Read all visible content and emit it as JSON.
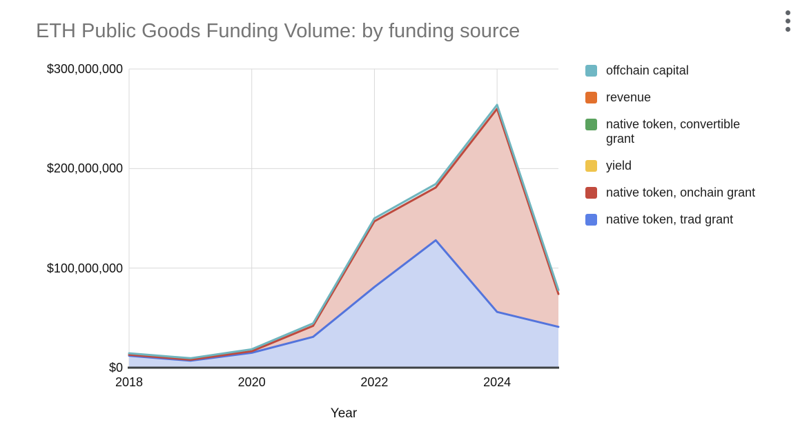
{
  "header": {
    "title": "ETH Public Goods Funding Volume: by funding source"
  },
  "menu": {
    "icon": "kebab-menu-icon"
  },
  "chart_data": {
    "type": "area",
    "stacked": true,
    "title": "ETH Public Goods Funding Volume: by funding source",
    "xlabel": "Year",
    "ylabel": "",
    "x": [
      2018,
      2019,
      2020,
      2021,
      2022,
      2023,
      2024,
      2025
    ],
    "x_ticks": [
      {
        "value": 2018,
        "label": "2018"
      },
      {
        "value": 2020,
        "label": "2020"
      },
      {
        "value": 2022,
        "label": "2022"
      },
      {
        "value": 2024,
        "label": "2024"
      }
    ],
    "y_ticks": [
      {
        "value": 0,
        "label": "$0"
      },
      {
        "value": 100000000,
        "label": "$100,000,000"
      },
      {
        "value": 200000000,
        "label": "$200,000,000"
      },
      {
        "value": 300000000,
        "label": "$300,000,000"
      }
    ],
    "ylim": [
      0,
      300000000
    ],
    "xlim": [
      2018,
      2025
    ],
    "grid": true,
    "legend_position": "right",
    "grid_color": "#d9d9d9",
    "axis_line_color": "#3c4043",
    "series": [
      {
        "name": "native token, trad grant",
        "color": "#5374dc",
        "fill": "#cbd6f3",
        "values": [
          12000000,
          7000000,
          15000000,
          31000000,
          81000000,
          128000000,
          56000000,
          41000000
        ]
      },
      {
        "name": "native token, onchain grant",
        "color": "#be4a3e",
        "fill": "#edc9c2",
        "values": [
          1000000,
          1000000,
          1500000,
          11000000,
          66000000,
          53000000,
          204000000,
          33000000
        ]
      },
      {
        "name": "yield",
        "color": "#efc44d",
        "fill": "#faebc4",
        "values": [
          0,
          0,
          0,
          0,
          0,
          0,
          0,
          0
        ]
      },
      {
        "name": "native token, convertible grant",
        "color": "#5aa25e",
        "fill": "#cce2cd",
        "values": [
          0,
          0,
          0,
          0,
          0,
          0,
          0,
          0
        ]
      },
      {
        "name": "revenue",
        "color": "#e2702d",
        "fill": "#f6d3bc",
        "values": [
          0,
          0,
          0,
          0,
          0,
          0,
          0,
          0
        ]
      },
      {
        "name": "offchain capital",
        "color": "#6fb5be",
        "fill": "#d9edef",
        "values": [
          1500000,
          1500000,
          2000000,
          2500000,
          3000000,
          3500000,
          4000000,
          4000000
        ]
      }
    ]
  },
  "legend": {
    "items": [
      {
        "label": "offchain capital",
        "lines": [
          "offchain capital"
        ],
        "color": "#6fb7c4"
      },
      {
        "label": "revenue",
        "lines": [
          "revenue"
        ],
        "color": "#e2702d"
      },
      {
        "label": "native token, convertible grant",
        "lines": [
          "native token, convertible",
          "grant"
        ],
        "color": "#5aa25e"
      },
      {
        "label": "yield",
        "lines": [
          "yield"
        ],
        "color": "#efc44d"
      },
      {
        "label": "native token, onchain grant",
        "lines": [
          "native token, onchain grant"
        ],
        "color": "#c14b3e"
      },
      {
        "label": "native token, trad grant",
        "lines": [
          "native token, trad grant"
        ],
        "color": "#5b80e6"
      }
    ]
  }
}
